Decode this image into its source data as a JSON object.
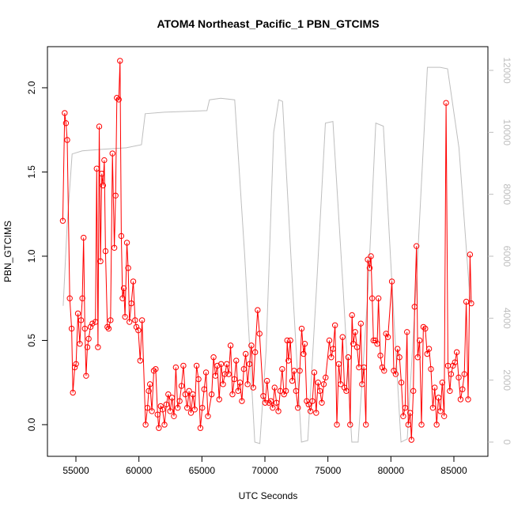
{
  "chart_data": {
    "type": "line",
    "title": "ATOM4 Northeast_Pacific_1 PBN_GTCIMS",
    "xlabel": "UTC Seconds",
    "ylabel": "PBN_GTCIMS",
    "xlim": [
      52740,
      87700
    ],
    "ylim": [
      -0.188,
      2.244
    ],
    "y2lim": [
      -460,
      12766
    ],
    "xticks": [
      55000,
      60000,
      65000,
      70000,
      75000,
      80000,
      85000
    ],
    "yticks": [
      {
        "value": 0,
        "label": "0.0"
      },
      {
        "value": 0.5,
        "label": "0.5"
      },
      {
        "value": 1,
        "label": "1.0"
      },
      {
        "value": 1.5,
        "label": "1.5"
      },
      {
        "value": 2,
        "label": "2.0"
      }
    ],
    "y2ticks": [
      0,
      2000,
      4000,
      6000,
      8000,
      10000,
      12000
    ],
    "y2color": "#bebebe",
    "series": [
      {
        "color": "#ff0000",
        "markers": true,
        "x": [
          53960,
          54110,
          54210,
          54310,
          54510,
          54660,
          54760,
          54910,
          55010,
          55160,
          55310,
          55410,
          55510,
          55610,
          55710,
          55810,
          55910,
          56010,
          56160,
          56310,
          56550,
          56650,
          56750,
          56850,
          56950,
          57050,
          57150,
          57250,
          57350,
          57500,
          57600,
          57750,
          57900,
          58050,
          58150,
          58250,
          58400,
          58500,
          58600,
          58700,
          58800,
          58900,
          59050,
          59150,
          59250,
          59400,
          59550,
          59700,
          59800,
          59950,
          60100,
          60250,
          60530,
          60680,
          60780,
          60880,
          61030,
          61180,
          61330,
          61480,
          61580,
          61730,
          61880,
          62030,
          62180,
          62330,
          62480,
          62630,
          62780,
          62930,
          63080,
          63230,
          63380,
          63530,
          63680,
          63830,
          63980,
          64130,
          64280,
          64430,
          64580,
          64730,
          64880,
          65030,
          65180,
          65330,
          65480,
          65775,
          65925,
          66075,
          66225,
          66375,
          66525,
          66675,
          66825,
          66975,
          67125,
          67275,
          67425,
          67575,
          67725,
          67875,
          68025,
          68175,
          68325,
          68475,
          68625,
          68775,
          68925,
          69075,
          69225,
          69425,
          69575,
          69870,
          70020,
          70170,
          70320,
          70470,
          70620,
          70770,
          70920,
          71070,
          71220,
          71370,
          71520,
          71670,
          71770,
          71870,
          72020,
          72170,
          72320,
          72470,
          72620,
          72770,
          72920,
          73070,
          73170,
          73320,
          73470,
          73620,
          73770,
          73920,
          74070,
          74220,
          74370,
          74520,
          74670,
          74820,
          75115,
          75265,
          75415,
          75565,
          75715,
          75865,
          76015,
          76165,
          76315,
          76465,
          76615,
          76765,
          76915,
          77015,
          77165,
          77315,
          77465,
          77615,
          77715,
          77865,
          78015,
          78165,
          78315,
          78415,
          78515,
          78615,
          78765,
          78915,
          79015,
          79165,
          79315,
          79465,
          79615,
          79765,
          80080,
          80230,
          80380,
          80530,
          80680,
          80830,
          80980,
          81130,
          81280,
          81380,
          81530,
          81630,
          81780,
          81880,
          82030,
          82130,
          82280,
          82430,
          82580,
          82730,
          82880,
          83030,
          83180,
          83330,
          83480,
          83630,
          83780,
          83930,
          84080,
          84230,
          84380,
          84530,
          84680,
          84780,
          84930,
          85080,
          85230,
          85380,
          85530,
          85680,
          85830,
          85980,
          86130,
          86280,
          86380
        ],
        "values": [
          1.21,
          1.85,
          1.79,
          1.69,
          0.75,
          0.57,
          0.19,
          0.34,
          0.36,
          0.66,
          0.48,
          0.62,
          0.75,
          1.11,
          0.57,
          0.29,
          0.46,
          0.51,
          0.58,
          0.6,
          0.61,
          1.52,
          0.46,
          1.77,
          0.97,
          1.49,
          1.42,
          1.57,
          1.03,
          0.58,
          0.57,
          0.62,
          1.61,
          1.05,
          1.36,
          1.94,
          1.93,
          2.16,
          1.12,
          0.75,
          0.81,
          0.64,
          1.08,
          0.93,
          0.61,
          0.72,
          0.85,
          0.62,
          0.58,
          0.56,
          0.38,
          0.62,
          0.0,
          0.1,
          0.2,
          0.24,
          0.08,
          0.32,
          0.33,
          0.06,
          -0.02,
          0.11,
          0.09,
          0.0,
          0.12,
          0.18,
          0.08,
          0.16,
          0.05,
          0.34,
          0.1,
          0.14,
          0.23,
          0.35,
          0.18,
          0.1,
          0.2,
          0.07,
          0.18,
          0.09,
          0.35,
          0.27,
          -0.02,
          0.1,
          0.21,
          0.31,
          0.05,
          0.18,
          0.4,
          0.29,
          0.35,
          0.15,
          0.36,
          0.24,
          0.3,
          0.36,
          0.3,
          0.47,
          0.18,
          0.27,
          0.38,
          0.2,
          0.25,
          0.14,
          0.33,
          0.42,
          0.24,
          0.36,
          0.47,
          0.22,
          0.43,
          0.68,
          0.54,
          0.17,
          0.13,
          0.26,
          0.13,
          0.14,
          0.1,
          0.22,
          0.13,
          0.08,
          0.2,
          0.33,
          0.18,
          0.2,
          0.5,
          0.38,
          0.5,
          0.26,
          0.32,
          0.2,
          0.1,
          0.32,
          0.57,
          0.42,
          0.48,
          0.14,
          0.12,
          0.08,
          0.14,
          0.31,
          0.07,
          0.25,
          0.2,
          0.13,
          0.24,
          0.28,
          0.5,
          0.4,
          0.45,
          0.59,
          0.0,
          0.36,
          0.24,
          0.52,
          0.22,
          0.2,
          0.4,
          0.0,
          0.65,
          0.48,
          0.55,
          0.46,
          0.34,
          0.6,
          0.24,
          0.34,
          0.0,
          0.98,
          0.93,
          1.0,
          0.75,
          0.5,
          0.5,
          0.48,
          0.75,
          0.41,
          0.34,
          0.32,
          0.54,
          0.52,
          0.85,
          0.32,
          0.3,
          0.45,
          0.4,
          0.25,
          0.05,
          0.1,
          0.55,
          0.0,
          0.07,
          -0.09,
          0.2,
          0.7,
          1.06,
          0.4,
          0.5,
          0.0,
          0.58,
          0.57,
          0.42,
          0.45,
          0.33,
          0.1,
          0.22,
          0.0,
          0.16,
          0.08,
          0.25,
          0.05,
          1.91,
          0.35,
          0.2,
          0.3,
          0.35,
          0.37,
          0.43,
          0.28,
          0.15,
          0.21,
          0.3,
          0.73,
          0.15,
          1.01,
          0.72
        ]
      },
      {
        "color": "#bebebe",
        "axis": "y2",
        "markers": false,
        "x": [
          53990,
          54300,
          54700,
          55500,
          57000,
          59000,
          60200,
          60500,
          62000,
          65400,
          65600,
          66500,
          67600,
          68400,
          69200,
          69600,
          70100,
          70700,
          71100,
          71400,
          72200,
          72900,
          73400,
          74100,
          74800,
          75400,
          76200,
          76900,
          77400,
          78200,
          78800,
          79400,
          80100,
          80800,
          81300,
          82000,
          82900,
          83900,
          84500,
          85400,
          86300
        ],
        "values": [
          4400,
          7000,
          9300,
          9400,
          9450,
          9500,
          9600,
          10600,
          10650,
          10700,
          11050,
          11100,
          11050,
          6000,
          0,
          -50,
          3000,
          10000,
          11050,
          11000,
          5000,
          0,
          50,
          5000,
          10300,
          10350,
          5000,
          0,
          0,
          5000,
          10300,
          10200,
          5000,
          0,
          100,
          5000,
          12100,
          12100,
          12050,
          9500,
          4500
        ]
      }
    ]
  }
}
